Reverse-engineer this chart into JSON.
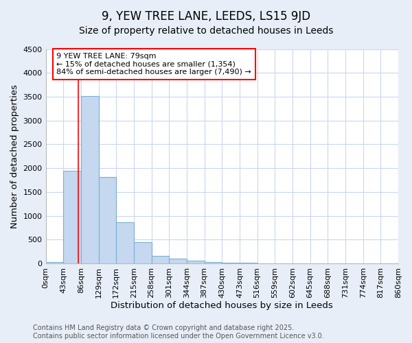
{
  "title1": "9, YEW TREE LANE, LEEDS, LS15 9JD",
  "title2": "Size of property relative to detached houses in Leeds",
  "xlabel": "Distribution of detached houses by size in Leeds",
  "ylabel": "Number of detached properties",
  "bar_values": [
    30,
    1950,
    3520,
    1820,
    860,
    450,
    165,
    100,
    55,
    35,
    20,
    10,
    3,
    1,
    0,
    0,
    0,
    0,
    0,
    0
  ],
  "bin_starts": [
    0,
    43,
    86,
    129,
    172,
    215,
    258,
    301,
    344,
    387,
    430,
    473,
    516,
    559,
    602,
    645,
    688,
    731,
    774,
    817
  ],
  "bin_width": 43,
  "bar_color": "#c5d8f0",
  "bar_edgecolor": "#7bafd4",
  "plot_bg_color": "#ffffff",
  "fig_bg_color": "#e8eef8",
  "red_line_x": 79,
  "annotation_title": "9 YEW TREE LANE: 79sqm",
  "annotation_line1": "← 15% of detached houses are smaller (1,354)",
  "annotation_line2": "84% of semi-detached houses are larger (7,490) →",
  "annotation_box_color": "white",
  "annotation_box_edgecolor": "red",
  "ylim": [
    0,
    4500
  ],
  "yticks": [
    0,
    500,
    1000,
    1500,
    2000,
    2500,
    3000,
    3500,
    4000,
    4500
  ],
  "xtick_labels": [
    "0sqm",
    "43sqm",
    "86sqm",
    "129sqm",
    "172sqm",
    "215sqm",
    "258sqm",
    "301sqm",
    "344sqm",
    "387sqm",
    "430sqm",
    "473sqm",
    "516sqm",
    "559sqm",
    "602sqm",
    "645sqm",
    "688sqm",
    "731sqm",
    "774sqm",
    "817sqm",
    "860sqm"
  ],
  "grid_color": "#c8d8f0",
  "footer1": "Contains HM Land Registry data © Crown copyright and database right 2025.",
  "footer2": "Contains public sector information licensed under the Open Government Licence v3.0.",
  "title1_fontsize": 12,
  "title2_fontsize": 10,
  "axis_label_fontsize": 9.5,
  "tick_fontsize": 8,
  "annotation_fontsize": 8,
  "footer_fontsize": 7
}
